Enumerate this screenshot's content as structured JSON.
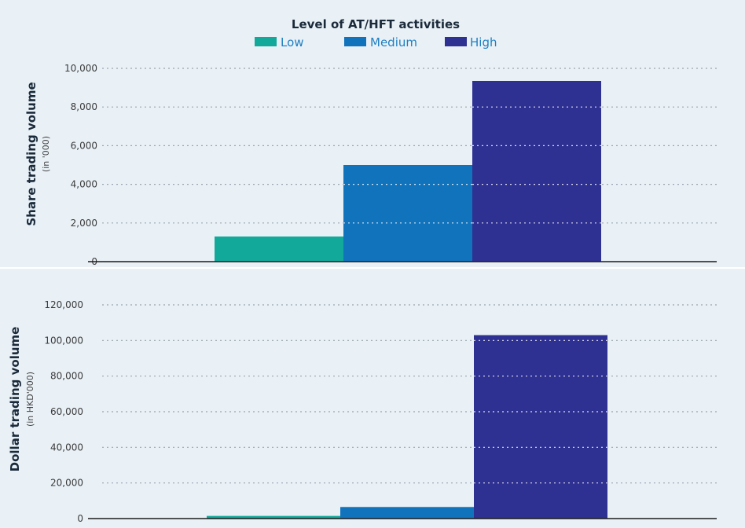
{
  "legend": {
    "title": "Level of AT/HFT activities",
    "items": [
      {
        "label": "Low",
        "color": "#12a99b"
      },
      {
        "label": "Medium",
        "color": "#1273bd"
      },
      {
        "label": "High",
        "color": "#2e3192"
      }
    ]
  },
  "colors": {
    "panel_background": "#e9f1f7",
    "grid": "#9aa4ad",
    "axis": "#1b1b1b"
  },
  "chart_data": [
    {
      "type": "bar",
      "categories": [
        "Low",
        "Medium",
        "High"
      ],
      "values": [
        1300,
        5000,
        9350
      ],
      "ylabel": "Share trading volume",
      "yunit": "(in '000)",
      "ylim": [
        0,
        10000
      ],
      "yticks": [
        "0",
        "2,000",
        "4,000",
        "6,000",
        "8,000",
        "10,000"
      ],
      "ytick_values": [
        0,
        2000,
        4000,
        6000,
        8000,
        10000
      ],
      "grid": true,
      "legend_position": "top"
    },
    {
      "type": "bar",
      "categories": [
        "Low",
        "Medium",
        "High"
      ],
      "values": [
        1500,
        6500,
        103000
      ],
      "ylabel": "Dollar trading volume",
      "yunit": "(in HKD'000)",
      "ylim": [
        0,
        120000
      ],
      "yticks": [
        "0",
        "20,000",
        "40,000",
        "60,000",
        "80,000",
        "100,000",
        "120,000"
      ],
      "ytick_values": [
        0,
        20000,
        40000,
        60000,
        80000,
        100000,
        120000
      ],
      "grid": true
    }
  ]
}
